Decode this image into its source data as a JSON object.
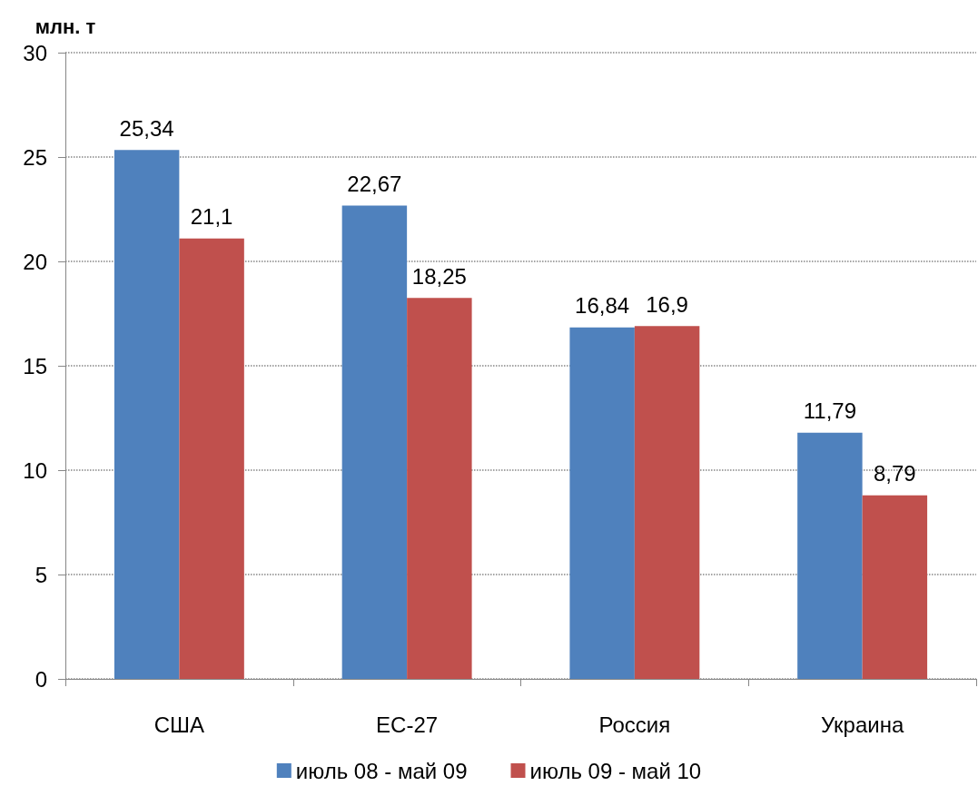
{
  "chart_data": {
    "type": "bar",
    "ylabel": "млн. т",
    "categories": [
      "США",
      "ЕС-27",
      "Россия",
      "Украина"
    ],
    "series": [
      {
        "name": "июль 08 - май 09",
        "color": "#4f81bd",
        "values": [
          25.34,
          22.67,
          16.84,
          11.79
        ]
      },
      {
        "name": "июль 09 - май 10",
        "color": "#c0504d",
        "values": [
          21.1,
          18.25,
          16.9,
          8.79
        ]
      }
    ],
    "ylim": [
      0,
      30
    ],
    "yticks": [
      0,
      5,
      10,
      15,
      20,
      25,
      30
    ],
    "grid": "y",
    "legend": "bottom",
    "value_labels": [
      [
        "25,34",
        "22,67",
        "16,84",
        "11,79"
      ],
      [
        "21,1",
        "18,25",
        "16,9",
        "8,79"
      ]
    ]
  }
}
